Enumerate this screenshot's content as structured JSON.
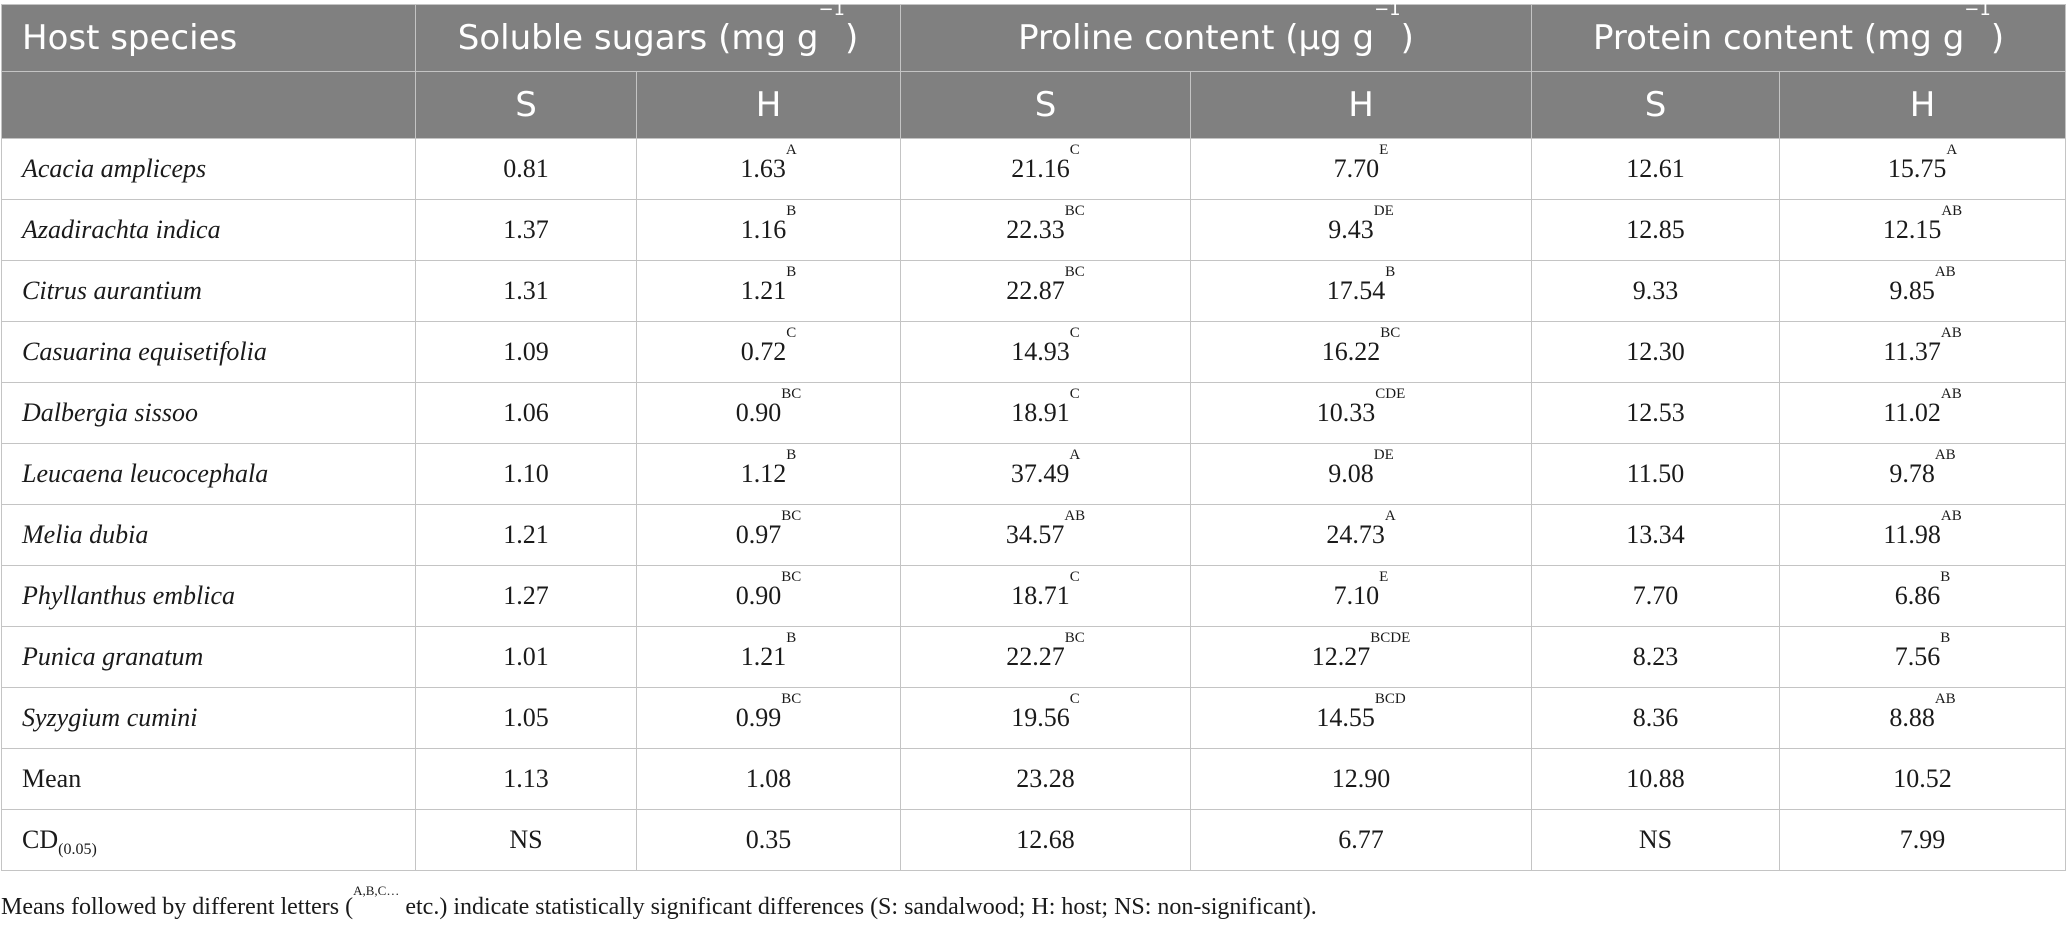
{
  "header": {
    "host_species": "Host species",
    "groups": [
      {
        "label": "Soluble sugars (mg g",
        "exp": "−1",
        "close": ")"
      },
      {
        "label": "Proline content (µg g",
        "exp": "−1",
        "close": ")"
      },
      {
        "label": "Protein content (mg g",
        "exp": "−1",
        "close": ")"
      }
    ],
    "sub": [
      "S",
      "H",
      "S",
      "H",
      "S",
      "H"
    ]
  },
  "rows": [
    {
      "name": "Acacia ampliceps",
      "cells": [
        {
          "v": "0.81",
          "s": ""
        },
        {
          "v": "1.63",
          "s": "A"
        },
        {
          "v": "21.16",
          "s": "C"
        },
        {
          "v": "7.70",
          "s": "E"
        },
        {
          "v": "12.61",
          "s": ""
        },
        {
          "v": "15.75",
          "s": "A"
        }
      ]
    },
    {
      "name": "Azadirachta indica",
      "cells": [
        {
          "v": "1.37",
          "s": ""
        },
        {
          "v": "1.16",
          "s": "B"
        },
        {
          "v": "22.33",
          "s": "BC"
        },
        {
          "v": "9.43",
          "s": "DE"
        },
        {
          "v": "12.85",
          "s": ""
        },
        {
          "v": "12.15",
          "s": "AB"
        }
      ]
    },
    {
      "name": "Citrus aurantium",
      "cells": [
        {
          "v": "1.31",
          "s": ""
        },
        {
          "v": "1.21",
          "s": "B"
        },
        {
          "v": "22.87",
          "s": "BC"
        },
        {
          "v": "17.54",
          "s": "B"
        },
        {
          "v": "9.33",
          "s": ""
        },
        {
          "v": "9.85",
          "s": "AB"
        }
      ]
    },
    {
      "name": "Casuarina equisetifolia",
      "cells": [
        {
          "v": "1.09",
          "s": ""
        },
        {
          "v": "0.72",
          "s": "C"
        },
        {
          "v": "14.93",
          "s": "C"
        },
        {
          "v": "16.22",
          "s": "BC"
        },
        {
          "v": "12.30",
          "s": ""
        },
        {
          "v": "11.37",
          "s": "AB"
        }
      ]
    },
    {
      "name": "Dalbergia sissoo",
      "cells": [
        {
          "v": "1.06",
          "s": ""
        },
        {
          "v": "0.90",
          "s": "BC"
        },
        {
          "v": "18.91",
          "s": "C"
        },
        {
          "v": "10.33",
          "s": "CDE"
        },
        {
          "v": "12.53",
          "s": ""
        },
        {
          "v": "11.02",
          "s": "AB"
        }
      ]
    },
    {
      "name": "Leucaena leucocephala",
      "cells": [
        {
          "v": "1.10",
          "s": ""
        },
        {
          "v": "1.12",
          "s": "B"
        },
        {
          "v": "37.49",
          "s": "A"
        },
        {
          "v": "9.08",
          "s": "DE"
        },
        {
          "v": "11.50",
          "s": ""
        },
        {
          "v": "9.78",
          "s": "AB"
        }
      ]
    },
    {
      "name": "Melia dubia",
      "cells": [
        {
          "v": "1.21",
          "s": ""
        },
        {
          "v": "0.97",
          "s": "BC"
        },
        {
          "v": "34.57",
          "s": "AB"
        },
        {
          "v": "24.73",
          "s": "A"
        },
        {
          "v": "13.34",
          "s": ""
        },
        {
          "v": "11.98",
          "s": "AB"
        }
      ]
    },
    {
      "name": "Phyllanthus emblica",
      "cells": [
        {
          "v": "1.27",
          "s": ""
        },
        {
          "v": "0.90",
          "s": "BC"
        },
        {
          "v": "18.71",
          "s": "C"
        },
        {
          "v": "7.10",
          "s": "E"
        },
        {
          "v": "7.70",
          "s": ""
        },
        {
          "v": "6.86",
          "s": "B"
        }
      ]
    },
    {
      "name": "Punica granatum",
      "cells": [
        {
          "v": "1.01",
          "s": ""
        },
        {
          "v": "1.21",
          "s": "B"
        },
        {
          "v": "22.27",
          "s": "BC"
        },
        {
          "v": "12.27",
          "s": "BCDE"
        },
        {
          "v": "8.23",
          "s": ""
        },
        {
          "v": "7.56",
          "s": "B"
        }
      ]
    },
    {
      "name": "Syzygium cumini",
      "cells": [
        {
          "v": "1.05",
          "s": ""
        },
        {
          "v": "0.99",
          "s": "BC"
        },
        {
          "v": "19.56",
          "s": "C"
        },
        {
          "v": "14.55",
          "s": "BCD"
        },
        {
          "v": "8.36",
          "s": ""
        },
        {
          "v": "8.88",
          "s": "AB"
        }
      ]
    }
  ],
  "mean": {
    "label": "Mean",
    "values": [
      "1.13",
      "1.08",
      "23.28",
      "12.90",
      "10.88",
      "10.52"
    ]
  },
  "cd": {
    "label": "CD",
    "sub": "(0.05)",
    "values": [
      "NS",
      "0.35",
      "12.68",
      "6.77",
      "NS",
      "7.99"
    ]
  },
  "footnote": {
    "before": "Means followed by different letters (",
    "sup": "A,B,C…",
    "after": " etc.) indicate statistically significant differences (S: sandalwood; H: host; NS: non-significant)."
  }
}
